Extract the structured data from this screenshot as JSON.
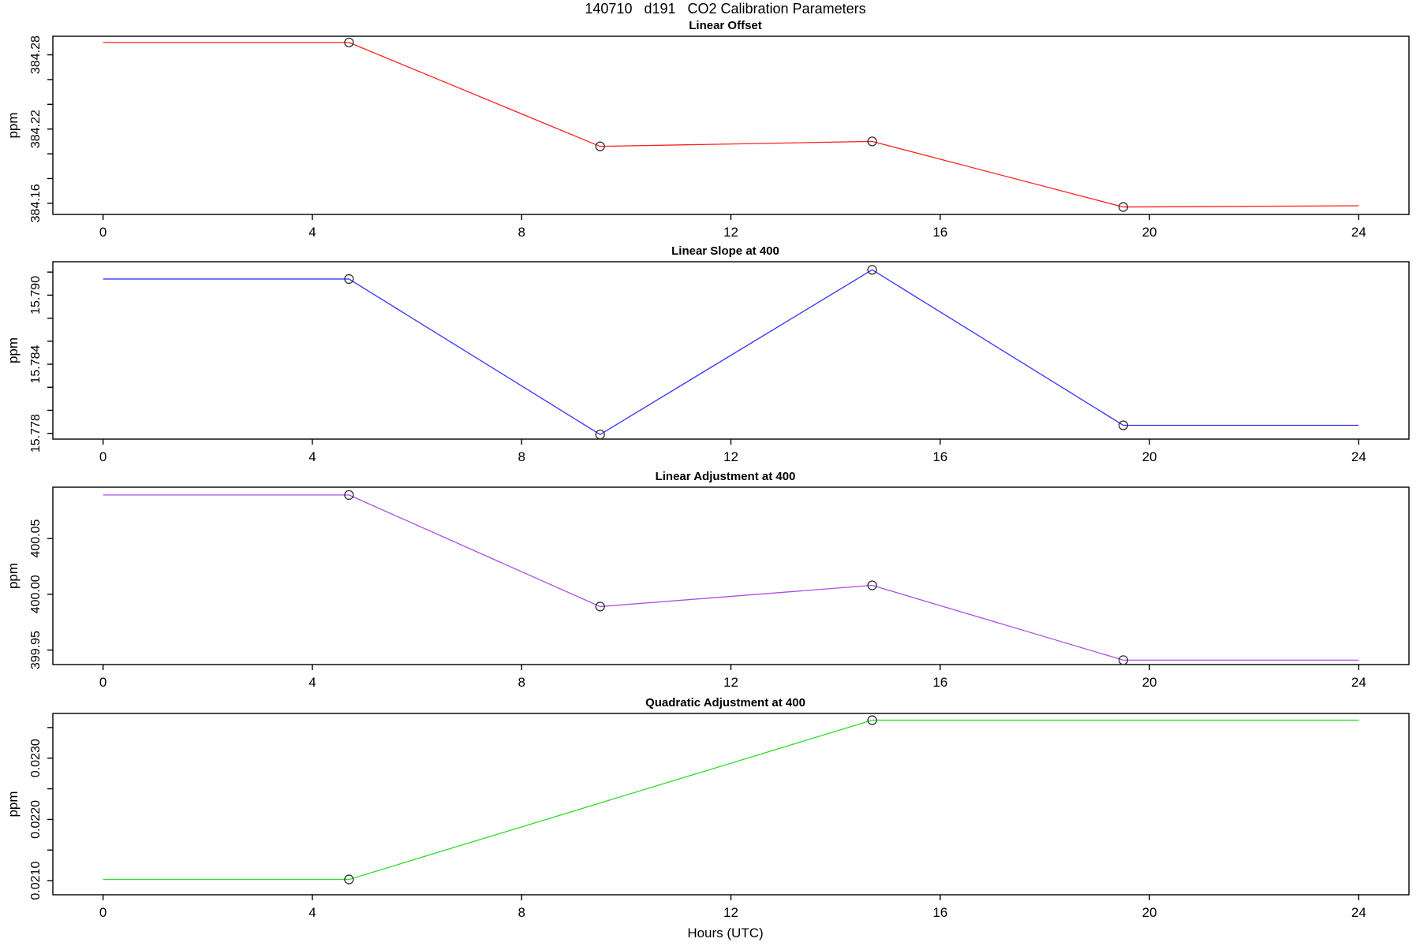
{
  "page_title": "140710   d191   CO2 Calibration Parameters",
  "xlabel": "Hours (UTC)",
  "axis": {
    "xlim": [
      -0.96,
      24.96
    ],
    "x_ticks": [
      0,
      4,
      8,
      12,
      16,
      20,
      24
    ],
    "x_tick_labels": [
      "0",
      "4",
      "8",
      "12",
      "16",
      "20",
      "24"
    ]
  },
  "chart_data": [
    {
      "type": "line",
      "title": "Linear Offset",
      "ylabel": "ppm",
      "color": "#FF2020",
      "ylim": [
        384.151,
        384.295
      ],
      "yticks": [
        {
          "v": 384.16,
          "label": "384.16"
        },
        {
          "v": 384.18,
          "label": ""
        },
        {
          "v": 384.2,
          "label": ""
        },
        {
          "v": 384.22,
          "label": "384.22"
        },
        {
          "v": 384.24,
          "label": ""
        },
        {
          "v": 384.26,
          "label": ""
        },
        {
          "v": 384.28,
          "label": "384.28"
        }
      ],
      "line": [
        [
          0,
          384.29
        ],
        [
          4.7,
          384.29
        ],
        [
          9.5,
          384.206
        ],
        [
          14.7,
          384.21
        ],
        [
          19.5,
          384.157
        ],
        [
          24,
          384.158
        ]
      ],
      "markers": [
        [
          4.7,
          384.29
        ],
        [
          9.5,
          384.206
        ],
        [
          14.7,
          384.21
        ],
        [
          19.5,
          384.157
        ]
      ]
    },
    {
      "type": "line",
      "title": "Linear Slope at 400",
      "ylabel": "ppm",
      "color": "#3333FF",
      "ylim": [
        15.7775,
        15.7929
      ],
      "yticks": [
        {
          "v": 15.778,
          "label": "15.778"
        },
        {
          "v": 15.78,
          "label": ""
        },
        {
          "v": 15.782,
          "label": ""
        },
        {
          "v": 15.784,
          "label": "15.784"
        },
        {
          "v": 15.786,
          "label": ""
        },
        {
          "v": 15.788,
          "label": ""
        },
        {
          "v": 15.79,
          "label": "15.790"
        },
        {
          "v": 15.792,
          "label": ""
        }
      ],
      "line": [
        [
          0,
          15.7914
        ],
        [
          4.7,
          15.7914
        ],
        [
          9.5,
          15.7779
        ],
        [
          14.7,
          15.7922
        ],
        [
          19.5,
          15.7787
        ],
        [
          24,
          15.7787
        ]
      ],
      "markers": [
        [
          4.7,
          15.7914
        ],
        [
          9.5,
          15.7779
        ],
        [
          14.7,
          15.7922
        ],
        [
          19.5,
          15.7787
        ]
      ]
    },
    {
      "type": "line",
      "title": "Linear Adjustment at 400",
      "ylabel": "ppm",
      "color": "#AE4CE6",
      "ylim": [
        399.937,
        400.096
      ],
      "yticks": [
        {
          "v": 399.95,
          "label": "399.95"
        },
        {
          "v": 400.0,
          "label": "400.00"
        },
        {
          "v": 400.05,
          "label": "400.05"
        }
      ],
      "line": [
        [
          0,
          400.089
        ],
        [
          4.7,
          400.089
        ],
        [
          9.5,
          399.989
        ],
        [
          14.7,
          400.008
        ],
        [
          19.5,
          399.941
        ],
        [
          24,
          399.941
        ]
      ],
      "markers": [
        [
          4.7,
          400.089
        ],
        [
          9.5,
          399.989
        ],
        [
          14.7,
          400.008
        ],
        [
          19.5,
          399.941
        ]
      ]
    },
    {
      "type": "line",
      "title": "Quadratic Adjustment at 400",
      "ylabel": "ppm",
      "color": "#2EDD2E",
      "ylim": [
        0.02077,
        0.02373
      ],
      "yticks": [
        {
          "v": 0.021,
          "label": "0.0210"
        },
        {
          "v": 0.0215,
          "label": ""
        },
        {
          "v": 0.022,
          "label": "0.0220"
        },
        {
          "v": 0.0225,
          "label": ""
        },
        {
          "v": 0.023,
          "label": "0.0230"
        },
        {
          "v": 0.0235,
          "label": ""
        }
      ],
      "line": [
        [
          0,
          0.02102
        ],
        [
          4.7,
          0.02102
        ],
        [
          14.7,
          0.02362
        ],
        [
          24,
          0.02362
        ]
      ],
      "markers": [
        [
          4.7,
          0.02102
        ],
        [
          14.7,
          0.02362
        ]
      ]
    }
  ]
}
